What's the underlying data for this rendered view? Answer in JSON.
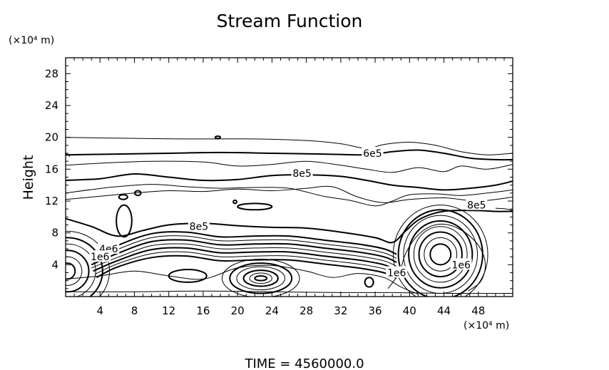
{
  "chart_data": {
    "type": "contour",
    "title": "Stream Function",
    "xlabel": "",
    "ylabel": "Height",
    "x_unit": "(×10⁴ m)",
    "y_unit": "(×10⁴ m)",
    "xlim": [
      0,
      52
    ],
    "ylim": [
      0,
      30
    ],
    "xticks": [
      4,
      8,
      12,
      16,
      20,
      24,
      28,
      32,
      36,
      40,
      44,
      48
    ],
    "yticks": [
      4,
      8,
      12,
      16,
      20,
      24,
      28
    ],
    "footer": "TIME  =  4560000.0",
    "contour_labels": [
      {
        "text": "6e5",
        "x": 35.7,
        "y": 18.0
      },
      {
        "text": "8e5",
        "x": 27.5,
        "y": 15.5
      },
      {
        "text": "8e5",
        "x": 47.8,
        "y": 11.5
      },
      {
        "text": "8e5",
        "x": 15.5,
        "y": 8.8
      },
      {
        "text": "4e6",
        "x": 5.0,
        "y": 6.0
      },
      {
        "text": "1e6",
        "x": 4.0,
        "y": 5.0
      },
      {
        "text": "1e6",
        "x": 38.5,
        "y": 3.0
      },
      {
        "text": "1e6",
        "x": 46.0,
        "y": 4.0
      }
    ],
    "contour_lines": [
      {
        "weight": "heavy",
        "points": [
          [
            0,
            17.8
          ],
          [
            6,
            17.9
          ],
          [
            12,
            18.0
          ],
          [
            18,
            18.1
          ],
          [
            24,
            18.0
          ],
          [
            30,
            17.9
          ],
          [
            34,
            17.8
          ],
          [
            36,
            17.9
          ],
          [
            38,
            18.2
          ],
          [
            41,
            18.4
          ],
          [
            44,
            18.0
          ],
          [
            47,
            17.4
          ],
          [
            50,
            17.2
          ],
          [
            52,
            17.2
          ]
        ]
      },
      {
        "weight": "light",
        "points": [
          [
            0,
            20.0
          ],
          [
            6,
            19.9
          ],
          [
            14,
            19.8
          ],
          [
            22,
            19.8
          ],
          [
            28,
            19.6
          ],
          [
            32,
            19.2
          ],
          [
            35,
            18.6
          ],
          [
            37,
            19.1
          ],
          [
            40,
            19.4
          ],
          [
            43,
            19.0
          ],
          [
            46,
            18.2
          ],
          [
            49,
            17.8
          ],
          [
            52,
            18.0
          ]
        ]
      },
      {
        "weight": "light",
        "points": [
          [
            0,
            16.5
          ],
          [
            5,
            16.8
          ],
          [
            10,
            17.0
          ],
          [
            16,
            16.9
          ],
          [
            20,
            16.4
          ],
          [
            24,
            16.6
          ],
          [
            28,
            17.0
          ],
          [
            32,
            16.5
          ],
          [
            35,
            16.0
          ],
          [
            38,
            15.6
          ],
          [
            41,
            16.2
          ],
          [
            44,
            15.7
          ],
          [
            46,
            16.4
          ],
          [
            49,
            16.0
          ],
          [
            52,
            16.6
          ]
        ]
      },
      {
        "weight": "heavy",
        "points": [
          [
            0,
            14.6
          ],
          [
            4,
            14.8
          ],
          [
            8,
            15.4
          ],
          [
            12,
            15.0
          ],
          [
            16,
            14.6
          ],
          [
            20,
            14.7
          ],
          [
            24,
            15.2
          ],
          [
            28,
            15.3
          ],
          [
            32,
            15.1
          ],
          [
            35,
            14.6
          ],
          [
            38,
            14.0
          ],
          [
            41,
            13.7
          ],
          [
            44,
            13.4
          ],
          [
            47,
            13.6
          ],
          [
            50,
            14.0
          ],
          [
            52,
            14.5
          ]
        ]
      },
      {
        "weight": "light",
        "points": [
          [
            0,
            13.0
          ],
          [
            5,
            13.7
          ],
          [
            10,
            14.1
          ],
          [
            14,
            13.8
          ],
          [
            18,
            13.6
          ],
          [
            22,
            13.7
          ],
          [
            26,
            13.6
          ],
          [
            30,
            12.6
          ],
          [
            33,
            12.1
          ],
          [
            36,
            11.4
          ],
          [
            38,
            12.0
          ],
          [
            40,
            12.8
          ],
          [
            43,
            12.9
          ],
          [
            46,
            12.7
          ],
          [
            49,
            13.0
          ],
          [
            52,
            13.4
          ]
        ]
      },
      {
        "weight": "light",
        "points": [
          [
            0,
            12.2
          ],
          [
            4,
            12.6
          ],
          [
            8,
            13.0
          ],
          [
            12,
            13.3
          ],
          [
            16,
            13.2
          ],
          [
            20,
            13.5
          ],
          [
            24,
            13.3
          ],
          [
            28,
            13.6
          ],
          [
            31,
            13.8
          ],
          [
            34,
            12.5
          ],
          [
            37,
            11.8
          ],
          [
            40,
            12.2
          ],
          [
            44,
            12.4
          ],
          [
            48,
            12.0
          ],
          [
            52,
            12.5
          ]
        ]
      },
      {
        "weight": "heavy",
        "points": [
          [
            0,
            9.8
          ],
          [
            3,
            8.8
          ],
          [
            6,
            7.6
          ],
          [
            9,
            8.3
          ],
          [
            12,
            9.0
          ],
          [
            16,
            9.2
          ],
          [
            20,
            8.9
          ],
          [
            24,
            8.7
          ],
          [
            28,
            8.6
          ],
          [
            32,
            8.1
          ],
          [
            36,
            7.4
          ],
          [
            38,
            6.8
          ],
          [
            39.5,
            8.2
          ],
          [
            41,
            9.6
          ],
          [
            43,
            10.5
          ],
          [
            45,
            10.8
          ],
          [
            48,
            10.8
          ],
          [
            50,
            10.7
          ],
          [
            52,
            10.7
          ]
        ]
      },
      {
        "weight": "heavy",
        "points": [
          [
            3,
            4.8
          ],
          [
            6,
            6.4
          ],
          [
            10,
            7.9
          ],
          [
            14,
            8.1
          ],
          [
            18,
            7.5
          ],
          [
            22,
            7.6
          ],
          [
            26,
            7.6
          ],
          [
            30,
            7.1
          ],
          [
            34,
            6.6
          ],
          [
            37,
            6.0
          ],
          [
            38.5,
            5.3
          ]
        ]
      },
      {
        "weight": "light",
        "points": [
          [
            3,
            4.4
          ],
          [
            6,
            5.9
          ],
          [
            10,
            7.4
          ],
          [
            14,
            7.6
          ],
          [
            18,
            7.0
          ],
          [
            22,
            7.1
          ],
          [
            26,
            7.1
          ],
          [
            30,
            6.6
          ],
          [
            34,
            6.1
          ],
          [
            37,
            5.5
          ],
          [
            38.5,
            4.8
          ]
        ]
      },
      {
        "weight": "heavy",
        "points": [
          [
            3,
            4.0
          ],
          [
            6,
            5.4
          ],
          [
            10,
            6.9
          ],
          [
            14,
            7.1
          ],
          [
            18,
            6.5
          ],
          [
            22,
            6.6
          ],
          [
            26,
            6.6
          ],
          [
            30,
            6.1
          ],
          [
            34,
            5.6
          ],
          [
            37,
            5.0
          ],
          [
            38.5,
            4.3
          ]
        ]
      },
      {
        "weight": "light",
        "points": [
          [
            3,
            3.6
          ],
          [
            6,
            4.9
          ],
          [
            10,
            6.4
          ],
          [
            14,
            6.6
          ],
          [
            18,
            6.0
          ],
          [
            22,
            6.1
          ],
          [
            26,
            6.1
          ],
          [
            30,
            5.6
          ],
          [
            34,
            5.1
          ],
          [
            37,
            4.5
          ],
          [
            38.5,
            3.8
          ]
        ]
      },
      {
        "weight": "heavy",
        "points": [
          [
            3.2,
            3.2
          ],
          [
            6,
            4.5
          ],
          [
            10,
            5.9
          ],
          [
            14,
            6.1
          ],
          [
            18,
            5.5
          ],
          [
            22,
            5.6
          ],
          [
            26,
            5.6
          ],
          [
            30,
            5.1
          ],
          [
            34,
            4.6
          ],
          [
            37,
            4.0
          ],
          [
            38.5,
            3.3
          ]
        ]
      },
      {
        "weight": "light",
        "points": [
          [
            3.4,
            2.8
          ],
          [
            6,
            4.1
          ],
          [
            10,
            5.4
          ],
          [
            14,
            5.6
          ],
          [
            18,
            5.0
          ],
          [
            22,
            5.1
          ],
          [
            26,
            5.1
          ],
          [
            30,
            4.6
          ],
          [
            34,
            4.1
          ],
          [
            37,
            3.5
          ],
          [
            38.5,
            2.8
          ]
        ]
      },
      {
        "weight": "heavy",
        "points": [
          [
            3.6,
            2.4
          ],
          [
            6,
            3.7
          ],
          [
            10,
            4.9
          ],
          [
            14,
            5.1
          ],
          [
            18,
            4.5
          ],
          [
            22,
            4.6
          ],
          [
            26,
            4.6
          ],
          [
            30,
            4.1
          ],
          [
            34,
            3.6
          ],
          [
            37,
            3.0
          ],
          [
            38.5,
            2.3
          ]
        ]
      },
      {
        "weight": "light",
        "points": [
          [
            0,
            2.2
          ],
          [
            4,
            2.6
          ],
          [
            8,
            3.2
          ],
          [
            12,
            2.6
          ],
          [
            16,
            2.2
          ],
          [
            20,
            3.6
          ],
          [
            24,
            3.9
          ],
          [
            28,
            3.2
          ],
          [
            31,
            2.4
          ],
          [
            34,
            2.9
          ],
          [
            37,
            2.4
          ],
          [
            39,
            1.2
          ],
          [
            41,
            0.3
          ]
        ]
      },
      {
        "weight": "light",
        "points": [
          [
            0,
            0.6
          ],
          [
            8,
            0.6
          ],
          [
            16,
            0.7
          ],
          [
            24,
            0.6
          ],
          [
            32,
            0.5
          ],
          [
            38,
            0.5
          ],
          [
            44,
            0.4
          ],
          [
            52,
            0.4
          ]
        ]
      },
      {
        "weight": "light",
        "points": [
          [
            0,
            18.0
          ],
          [
            0.5,
            17.6
          ]
        ]
      },
      {
        "weight": "light",
        "points": [
          [
            50,
            11.1
          ],
          [
            51.3,
            11.0
          ],
          [
            52,
            10.8
          ]
        ]
      },
      {
        "weight": "light",
        "points": [
          [
            37.5,
            1.0
          ],
          [
            38.8,
            3.0
          ],
          [
            39.5,
            5.3
          ],
          [
            40.7,
            7.4
          ],
          [
            42.2,
            8.7
          ],
          [
            43.8,
            9.1
          ],
          [
            45.6,
            8.6
          ],
          [
            47.4,
            7.2
          ],
          [
            48.5,
            5.5
          ],
          [
            48.8,
            3.6
          ],
          [
            48.2,
            1.8
          ],
          [
            46.8,
            0.7
          ]
        ]
      }
    ],
    "closed_contours": [
      {
        "cx": 22.7,
        "cy": 2.3,
        "rx": [
          0.7,
          1.3,
          2.0,
          2.8,
          3.6,
          4.5
        ],
        "ry": [
          0.3,
          0.65,
          1.0,
          1.45,
          1.9,
          2.4
        ]
      },
      {
        "cx": 43.6,
        "cy": 5.3,
        "rx": [
          1.2,
          1.9,
          2.5,
          3.1,
          3.7,
          4.3,
          4.9,
          5.5
        ],
        "ry": [
          1.3,
          2.1,
          2.8,
          3.5,
          4.2,
          4.9,
          5.6,
          6.2
        ]
      },
      {
        "cx": 0.2,
        "cy": 3.2,
        "rx": [
          0.9,
          1.7,
          2.5,
          3.3,
          4.1,
          4.9
        ],
        "ry": [
          1.0,
          1.8,
          2.6,
          3.4,
          4.2,
          5.0
        ]
      },
      {
        "cx": 14.2,
        "cy": 2.6,
        "rx": [
          2.2
        ],
        "ry": [
          0.8
        ]
      },
      {
        "cx": 35.3,
        "cy": 1.8,
        "rx": [
          0.5
        ],
        "ry": [
          0.6
        ]
      },
      {
        "cx": 22.0,
        "cy": 11.3,
        "rx": [
          2.0
        ],
        "ry": [
          0.4
        ]
      },
      {
        "cx": 6.8,
        "cy": 9.5,
        "rx": [
          0.9
        ],
        "ry": [
          2.0
        ]
      },
      {
        "cx": 6.7,
        "cy": 12.5,
        "rx": [
          0.5
        ],
        "ry": [
          0.3
        ]
      },
      {
        "cx": 8.4,
        "cy": 13.0,
        "rx": [
          0.35
        ],
        "ry": [
          0.3
        ]
      },
      {
        "cx": 19.7,
        "cy": 11.9,
        "rx": [
          0.2
        ],
        "ry": [
          0.2
        ]
      },
      {
        "cx": 17.7,
        "cy": 20.0,
        "rx": [
          0.3
        ],
        "ry": [
          0.15
        ]
      }
    ]
  }
}
